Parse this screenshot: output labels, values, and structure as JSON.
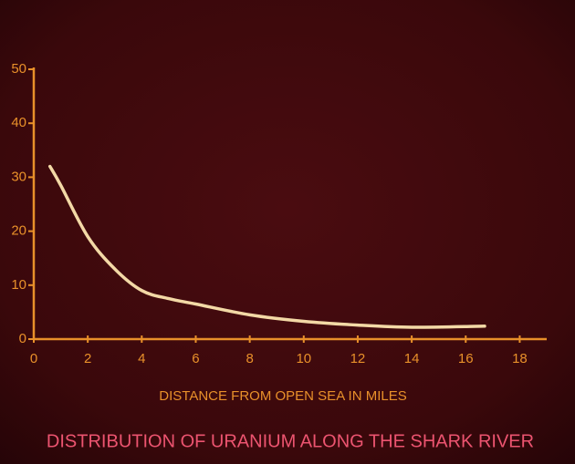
{
  "chart_data": {
    "type": "line",
    "title": "DISTRIBUTION OF URANIUM ALONG THE SHARK RIVER",
    "x_label": "DISTANCE FROM OPEN SEA IN MILES",
    "x": [
      0.6,
      1,
      2,
      3,
      4,
      5,
      6,
      8,
      10,
      12,
      14,
      16.7
    ],
    "series": [
      {
        "name": "Uranium",
        "color": "#f3d9a6",
        "values": [
          32,
          28.5,
          19,
          13,
          9,
          7.5,
          6.5,
          4.5,
          3.3,
          2.6,
          2.2,
          2.4
        ]
      }
    ],
    "xlim": [
      0,
      19
    ],
    "ylim": [
      0,
      50
    ],
    "xticks": [
      0,
      2,
      4,
      6,
      8,
      10,
      12,
      14,
      16,
      18
    ],
    "yticks": [
      0,
      10,
      20,
      30,
      40,
      50
    ],
    "axis_color": "#e8902a",
    "title_color": "#ec5470",
    "grid": false
  }
}
